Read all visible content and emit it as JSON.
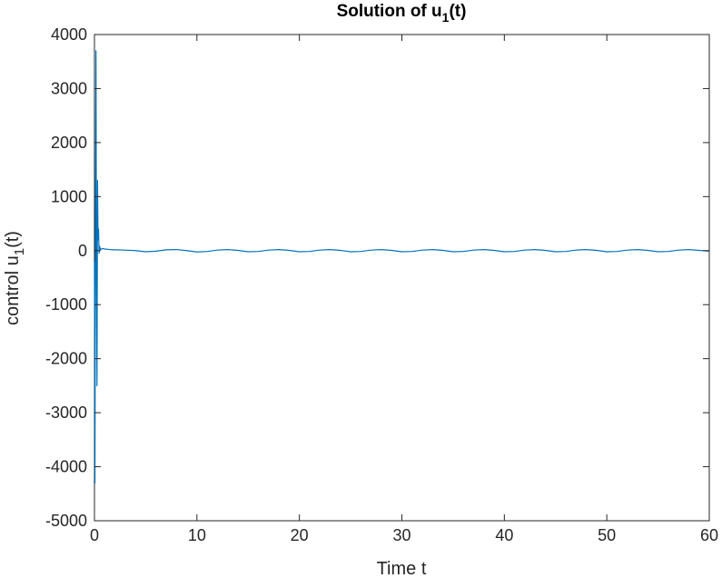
{
  "chart_data": {
    "type": "line",
    "title": "Solution of u",
    "title_subscript": "1",
    "title_suffix": "(t)",
    "xlabel": "Time t",
    "ylabel": "control u",
    "ylabel_subscript": "1",
    "ylabel_suffix": "(t)",
    "xlim": [
      0,
      60
    ],
    "ylim": [
      -5000,
      4000
    ],
    "xticks": [
      0,
      10,
      20,
      30,
      40,
      50,
      60
    ],
    "xtick_labels": [
      "0",
      "10",
      "20",
      "30",
      "40",
      "50",
      "60"
    ],
    "yticks": [
      4000,
      3000,
      2000,
      1000,
      0,
      -1000,
      -2000,
      -3000,
      -4000,
      -5000
    ],
    "ytick_labels": [
      "4000",
      "3000",
      "2000",
      "1000",
      "0",
      "-1000",
      "-2000",
      "-3000",
      "-4000",
      "-5000"
    ],
    "grid": false,
    "legend": false,
    "series": [
      {
        "color": "#0072BD",
        "x": [
          0,
          0.05,
          0.1,
          0.15,
          0.2,
          0.25,
          0.3,
          0.35,
          0.4,
          0.45,
          0.5,
          0.6,
          0.8,
          1.0,
          1.5,
          2,
          3,
          4,
          5,
          6,
          7,
          8,
          9,
          10,
          11,
          12,
          13,
          14,
          15,
          16,
          17,
          18,
          19,
          20,
          21,
          22,
          23,
          24,
          25,
          26,
          27,
          28,
          29,
          30,
          31,
          32,
          33,
          34,
          35,
          36,
          37,
          38,
          39,
          40,
          41,
          42,
          43,
          44,
          45,
          46,
          47,
          48,
          49,
          50,
          51,
          52,
          53,
          54,
          55,
          56,
          57,
          58,
          59,
          60
        ],
        "y": [
          -200,
          -4300,
          800,
          3700,
          -600,
          -2500,
          1300,
          200,
          400,
          -50,
          80,
          20,
          40,
          30,
          20,
          15,
          10,
          0,
          -20,
          -10,
          15,
          20,
          0,
          -25,
          -15,
          10,
          20,
          5,
          -20,
          -15,
          10,
          20,
          5,
          -20,
          -15,
          10,
          20,
          5,
          -20,
          -15,
          10,
          20,
          5,
          -20,
          -15,
          10,
          20,
          5,
          -20,
          -15,
          10,
          20,
          5,
          -20,
          -15,
          10,
          20,
          5,
          -20,
          -15,
          10,
          20,
          5,
          -20,
          -15,
          10,
          20,
          5,
          -20,
          -15,
          10,
          20,
          5,
          -10
        ]
      }
    ]
  }
}
